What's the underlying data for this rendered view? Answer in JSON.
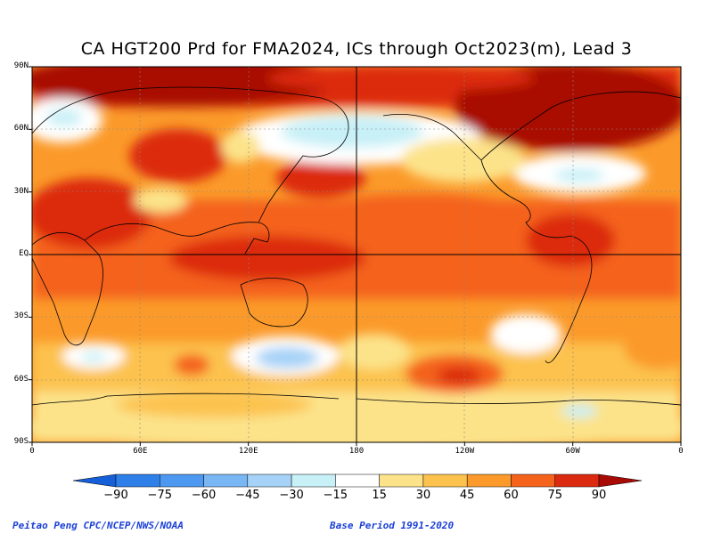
{
  "title": "CA HGT200 Prd for FMA2024, ICs through Oct2023(m), Lead 3",
  "lat_labels": [
    {
      "text": "90N",
      "lat": 90
    },
    {
      "text": "60N",
      "lat": 60
    },
    {
      "text": "30N",
      "lat": 30
    },
    {
      "text": "EQ",
      "lat": 0
    },
    {
      "text": "30S",
      "lat": -30
    },
    {
      "text": "60S",
      "lat": -60
    },
    {
      "text": "90S",
      "lat": -90
    }
  ],
  "lon_labels": [
    {
      "text": "0",
      "lon": 0
    },
    {
      "text": "60E",
      "lon": 60
    },
    {
      "text": "120E",
      "lon": 120
    },
    {
      "text": "180",
      "lon": 180
    },
    {
      "text": "120W",
      "lon": 240
    },
    {
      "text": "60W",
      "lon": 300
    },
    {
      "text": "0",
      "lon": 360
    }
  ],
  "colorbar": {
    "levels": [
      "-90",
      "-75",
      "-60",
      "-45",
      "-30",
      "-15",
      "15",
      "30",
      "45",
      "60",
      "75",
      "90"
    ],
    "colors": [
      "#1560d8",
      "#2f7fe8",
      "#4d98f0",
      "#79b6f4",
      "#a6d2f7",
      "#c8f0f7",
      "#ffffff",
      "#fce38a",
      "#fcc24d",
      "#fb9a2a",
      "#f4621c",
      "#dc2a10",
      "#a80a05"
    ]
  },
  "footer_left": "Peitao Peng CPC/NCEP/NWS/NOAA",
  "footer_right": "Base Period 1991-2020",
  "colors": {
    "footer_text": "#1a3fd8",
    "lowest": "#1560d8",
    "highest": "#a80a05"
  }
}
